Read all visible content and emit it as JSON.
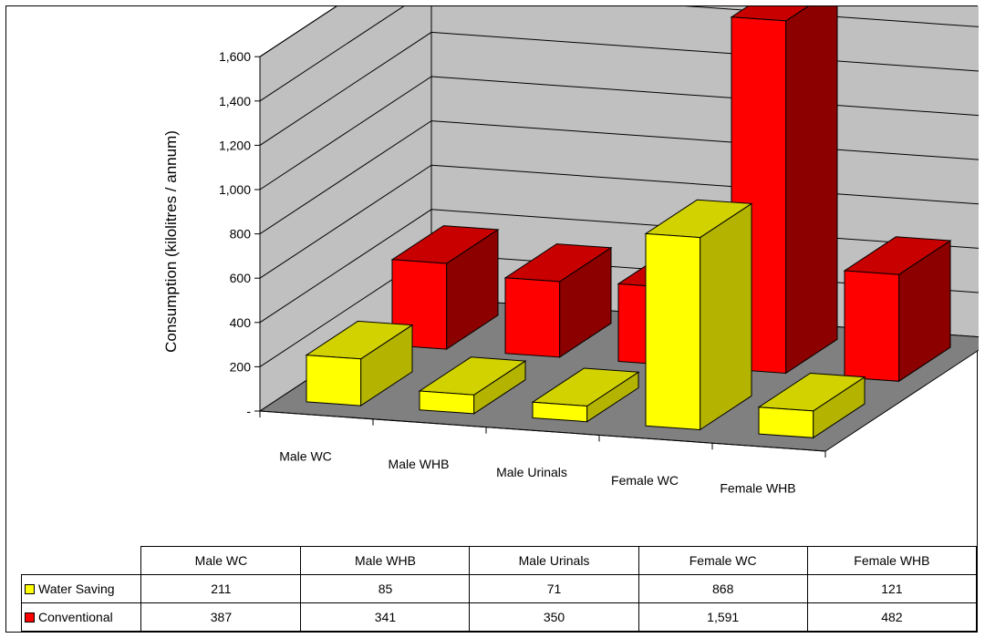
{
  "chart_data": {
    "type": "bar",
    "three_d": true,
    "title": "",
    "xlabel": "",
    "ylabel": "Consumption (kilolitres / annum)",
    "ylim": [
      0,
      1600
    ],
    "yticks": [
      0,
      200,
      400,
      600,
      800,
      1000,
      1200,
      1400,
      1600
    ],
    "ytick_labels": [
      "-",
      "200",
      "400",
      "600",
      "800",
      "1,000",
      "1,200",
      "1,400",
      "1,600"
    ],
    "grid": true,
    "legend": "data-table-below",
    "categories": [
      "Male WC",
      "Male WHB",
      "Male Urinals",
      "Female WC",
      "Female WHB"
    ],
    "series": [
      {
        "name": "Water Saving",
        "values": [
          211,
          85,
          71,
          868,
          121
        ],
        "value_labels": [
          "211",
          "85",
          "71",
          "868",
          "121"
        ],
        "color": "#ffff00",
        "side_color": "#b4b400",
        "top_color": "#d2d200"
      },
      {
        "name": "Conventional",
        "values": [
          387,
          341,
          350,
          1591,
          482
        ],
        "value_labels": [
          "387",
          "341",
          "350",
          "1,591",
          "482"
        ],
        "color": "#ff0000",
        "side_color": "#8c0000",
        "top_color": "#c80000"
      }
    ]
  },
  "colors": {
    "wall": "#c0c0c0",
    "floor": "#808080",
    "gridline": "#000000"
  }
}
